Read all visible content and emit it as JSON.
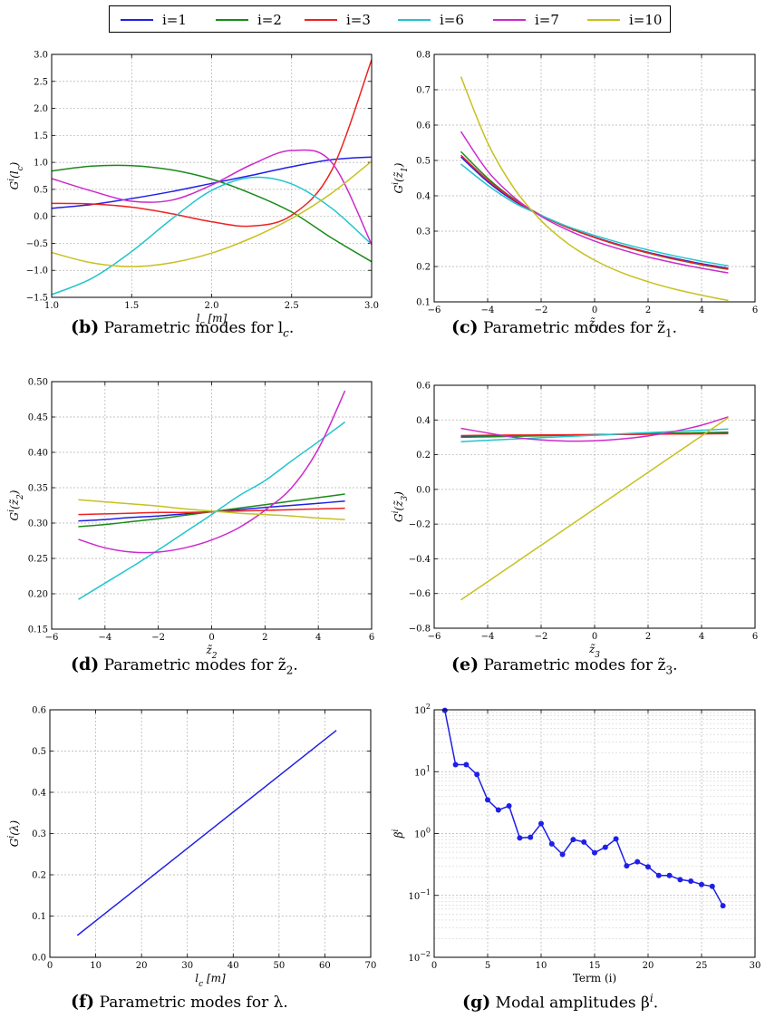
{
  "legend": {
    "placement": "top-center",
    "entries": [
      {
        "label": "i=1",
        "color": "#1f1fe6"
      },
      {
        "label": "i=2",
        "color": "#1a8a1a"
      },
      {
        "label": "i=3",
        "color": "#ee2222"
      },
      {
        "label": "i=6",
        "color": "#22c4cc"
      },
      {
        "label": "i=7",
        "color": "#cc2acc"
      },
      {
        "label": "i=10",
        "color": "#c8c020"
      }
    ]
  },
  "captions": {
    "b": {
      "letter": "(b)",
      "text": "Parametric modes for l",
      "sub": "c",
      "end": "."
    },
    "c": {
      "letter": "(c)",
      "text": "Parametric modes for z̃",
      "sub": "1",
      "end": "."
    },
    "d": {
      "letter": "(d)",
      "text": "Parametric modes for z̃",
      "sub": "2",
      "end": "."
    },
    "e": {
      "letter": "(e)",
      "text": "Parametric modes for z̃",
      "sub": "3",
      "end": "."
    },
    "f": {
      "letter": "(f)",
      "text": "Parametric modes for λ.",
      "sub": "",
      "end": ""
    },
    "g": {
      "letter": "(g)",
      "text": "Modal amplitudes β",
      "sup": "i",
      "end": "."
    }
  },
  "chart_data": [
    {
      "id": "b",
      "type": "line",
      "grid": true,
      "xlabel": "l_c [m]",
      "ylabel": "G^i(l_c)",
      "xlim": [
        1.0,
        3.0
      ],
      "ylim": [
        -1.5,
        3.0
      ],
      "xticks": [
        "1.0",
        "1.5",
        "2.0",
        "2.5",
        "3.0"
      ],
      "yticks": [
        "-1.5",
        "-1.0",
        "-0.5",
        "0.0",
        "0.5",
        "1.0",
        "1.5",
        "2.0",
        "2.5",
        "3.0"
      ],
      "x": [
        1.0,
        1.25,
        1.5,
        1.75,
        2.0,
        2.25,
        2.5,
        2.75,
        3.0
      ],
      "series": [
        {
          "name": "i=1",
          "color": "#1f1fe6",
          "values": [
            0.15,
            0.22,
            0.33,
            0.46,
            0.61,
            0.76,
            0.92,
            1.05,
            1.1
          ]
        },
        {
          "name": "i=2",
          "color": "#1a8a1a",
          "values": [
            0.84,
            0.93,
            0.94,
            0.86,
            0.69,
            0.42,
            0.08,
            -0.4,
            -0.84
          ]
        },
        {
          "name": "i=3",
          "color": "#ee2222",
          "values": [
            0.24,
            0.23,
            0.17,
            0.05,
            -0.1,
            -0.18,
            0.02,
            0.85,
            2.9
          ]
        },
        {
          "name": "i=6",
          "color": "#22c4cc",
          "values": [
            -1.45,
            -1.15,
            -0.65,
            -0.05,
            0.48,
            0.72,
            0.6,
            0.15,
            -0.52
          ]
        },
        {
          "name": "i=7",
          "color": "#cc2acc",
          "values": [
            0.7,
            0.47,
            0.28,
            0.3,
            0.58,
            0.96,
            1.22,
            1.0,
            -0.52
          ]
        },
        {
          "name": "i=10",
          "color": "#c8c020",
          "values": [
            -0.67,
            -0.86,
            -0.93,
            -0.86,
            -0.68,
            -0.4,
            -0.04,
            0.43,
            1.02
          ]
        }
      ]
    },
    {
      "id": "c",
      "type": "line",
      "grid": true,
      "xlabel": "z̃_1",
      "ylabel": "G^i(z̃_1)",
      "xlim": [
        -6,
        6
      ],
      "ylim": [
        0.1,
        0.8
      ],
      "xticks": [
        "-6",
        "-4",
        "-2",
        "0",
        "2",
        "4",
        "6"
      ],
      "yticks": [
        "0.1",
        "0.2",
        "0.3",
        "0.4",
        "0.5",
        "0.6",
        "0.7",
        "0.8"
      ],
      "x": [
        -5,
        -4,
        -3,
        -2,
        -1,
        0,
        1,
        2,
        3,
        4,
        5
      ],
      "series": [
        {
          "name": "i=1",
          "color": "#1f1fe6",
          "values": [
            0.51,
            0.44,
            0.385,
            0.345,
            0.31,
            0.283,
            0.26,
            0.24,
            0.223,
            0.208,
            0.195
          ]
        },
        {
          "name": "i=2",
          "color": "#1a8a1a",
          "values": [
            0.525,
            0.45,
            0.39,
            0.345,
            0.31,
            0.282,
            0.258,
            0.238,
            0.22,
            0.205,
            0.192
          ]
        },
        {
          "name": "i=3",
          "color": "#ee2222",
          "values": [
            0.515,
            0.445,
            0.388,
            0.345,
            0.31,
            0.282,
            0.259,
            0.239,
            0.221,
            0.206,
            0.193
          ]
        },
        {
          "name": "i=6",
          "color": "#22c4cc",
          "values": [
            0.49,
            0.43,
            0.38,
            0.345,
            0.313,
            0.288,
            0.266,
            0.247,
            0.23,
            0.215,
            0.202
          ]
        },
        {
          "name": "i=7",
          "color": "#cc2acc",
          "values": [
            0.582,
            0.47,
            0.395,
            0.342,
            0.303,
            0.272,
            0.248,
            0.227,
            0.21,
            0.195,
            0.182
          ]
        },
        {
          "name": "i=10",
          "color": "#c8c020",
          "values": [
            0.737,
            0.55,
            0.42,
            0.33,
            0.265,
            0.218,
            0.183,
            0.157,
            0.136,
            0.119,
            0.104
          ]
        }
      ]
    },
    {
      "id": "d",
      "type": "line",
      "grid": true,
      "xlabel": "z̃_2",
      "ylabel": "G^i(z̃_2)",
      "xlim": [
        -6,
        6
      ],
      "ylim": [
        0.15,
        0.5
      ],
      "xticks": [
        "-6",
        "-4",
        "-2",
        "0",
        "2",
        "4",
        "6"
      ],
      "yticks": [
        "0.15",
        "0.20",
        "0.25",
        "0.30",
        "0.35",
        "0.40",
        "0.45",
        "0.50"
      ],
      "x": [
        -5,
        -4,
        -3,
        -2,
        -1,
        0,
        1,
        2,
        3,
        4,
        5
      ],
      "series": [
        {
          "name": "i=1",
          "color": "#1f1fe6",
          "values": [
            0.303,
            0.305,
            0.308,
            0.31,
            0.313,
            0.316,
            0.319,
            0.322,
            0.325,
            0.328,
            0.331
          ]
        },
        {
          "name": "i=2",
          "color": "#1a8a1a",
          "values": [
            0.295,
            0.298,
            0.302,
            0.306,
            0.311,
            0.316,
            0.321,
            0.326,
            0.331,
            0.336,
            0.341
          ]
        },
        {
          "name": "i=3",
          "color": "#ee2222",
          "values": [
            0.312,
            0.313,
            0.314,
            0.315,
            0.315,
            0.316,
            0.317,
            0.318,
            0.319,
            0.32,
            0.321
          ]
        },
        {
          "name": "i=6",
          "color": "#22c4cc",
          "values": [
            0.192,
            0.215,
            0.238,
            0.262,
            0.287,
            0.312,
            0.338,
            0.36,
            0.388,
            0.415,
            0.443
          ]
        },
        {
          "name": "i=7",
          "color": "#cc2acc",
          "values": [
            0.277,
            0.265,
            0.259,
            0.259,
            0.265,
            0.276,
            0.293,
            0.318,
            0.35,
            0.405,
            0.487
          ]
        },
        {
          "name": "i=10",
          "color": "#c8c020",
          "values": [
            0.333,
            0.33,
            0.327,
            0.324,
            0.32,
            0.317,
            0.314,
            0.312,
            0.31,
            0.307,
            0.305
          ]
        }
      ]
    },
    {
      "id": "e",
      "type": "line",
      "grid": true,
      "xlabel": "z̃_3",
      "ylabel": "G^i(z̃_3)",
      "xlim": [
        -6,
        6
      ],
      "ylim": [
        -0.8,
        0.6
      ],
      "xticks": [
        "-6",
        "-4",
        "-2",
        "0",
        "2",
        "4",
        "6"
      ],
      "yticks": [
        "-0.8",
        "-0.6",
        "-0.4",
        "-0.2",
        "0.0",
        "0.2",
        "0.4",
        "0.6"
      ],
      "x": [
        -5,
        -4,
        -3,
        -2,
        -1,
        0,
        1,
        2,
        3,
        4,
        5
      ],
      "series": [
        {
          "name": "i=1",
          "color": "#1f1fe6",
          "values": [
            0.305,
            0.307,
            0.309,
            0.311,
            0.313,
            0.315,
            0.317,
            0.319,
            0.321,
            0.323,
            0.325
          ]
        },
        {
          "name": "i=2",
          "color": "#1a8a1a",
          "values": [
            0.3,
            0.303,
            0.306,
            0.309,
            0.312,
            0.315,
            0.318,
            0.321,
            0.324,
            0.327,
            0.33
          ]
        },
        {
          "name": "i=3",
          "color": "#ee2222",
          "values": [
            0.31,
            0.312,
            0.313,
            0.314,
            0.315,
            0.316,
            0.317,
            0.318,
            0.319,
            0.32,
            0.321
          ]
        },
        {
          "name": "i=6",
          "color": "#22c4cc",
          "values": [
            0.275,
            0.283,
            0.29,
            0.298,
            0.305,
            0.312,
            0.32,
            0.327,
            0.334,
            0.341,
            0.348
          ]
        },
        {
          "name": "i=7",
          "color": "#cc2acc",
          "values": [
            0.352,
            0.325,
            0.3,
            0.285,
            0.278,
            0.28,
            0.29,
            0.308,
            0.335,
            0.37,
            0.418
          ]
        },
        {
          "name": "i=10",
          "color": "#c8c020",
          "values": [
            -0.637,
            -0.532,
            -0.427,
            -0.322,
            -0.217,
            -0.112,
            -0.007,
            0.098,
            0.203,
            0.308,
            0.413
          ]
        }
      ]
    },
    {
      "id": "f",
      "type": "line",
      "grid": true,
      "xlabel": "l_c [m]",
      "ylabel": "G^i(λ)",
      "xlim": [
        0,
        70
      ],
      "ylim": [
        0.0,
        0.6
      ],
      "xticks": [
        "0",
        "10",
        "20",
        "30",
        "40",
        "50",
        "60",
        "70"
      ],
      "yticks": [
        "0.0",
        "0.1",
        "0.2",
        "0.3",
        "0.4",
        "0.5",
        "0.6"
      ],
      "x": [
        6,
        62.5
      ],
      "series": [
        {
          "name": "i=1",
          "color": "#1f1fe6",
          "values": [
            0.053,
            0.55
          ]
        }
      ]
    },
    {
      "id": "g",
      "type": "line",
      "grid": true,
      "yscale": "log",
      "xlabel": "Term (i)",
      "ylabel": "β^i",
      "xlim": [
        0,
        30
      ],
      "ylim": [
        0.01,
        100
      ],
      "xticks": [
        "0",
        "5",
        "10",
        "15",
        "20",
        "25",
        "30"
      ],
      "yticks": [
        {
          "base": "10",
          "exp": "-2"
        },
        {
          "base": "10",
          "exp": "-1"
        },
        {
          "base": "10",
          "exp": "0"
        },
        {
          "base": "10",
          "exp": "1"
        },
        {
          "base": "10",
          "exp": "2"
        }
      ],
      "x": [
        1,
        2,
        3,
        4,
        5,
        6,
        7,
        8,
        9,
        10,
        11,
        12,
        13,
        14,
        15,
        16,
        17,
        18,
        19,
        20,
        21,
        22,
        23,
        24,
        25,
        26,
        27
      ],
      "series": [
        {
          "name": "",
          "color": "#1f1fe6",
          "values": [
            98,
            13,
            13,
            9,
            3.5,
            2.4,
            2.8,
            0.85,
            0.87,
            1.45,
            0.68,
            0.46,
            0.8,
            0.73,
            0.49,
            0.6,
            0.82,
            0.3,
            0.35,
            0.29,
            0.21,
            0.21,
            0.18,
            0.17,
            0.15,
            0.14,
            0.068
          ]
        }
      ]
    }
  ]
}
